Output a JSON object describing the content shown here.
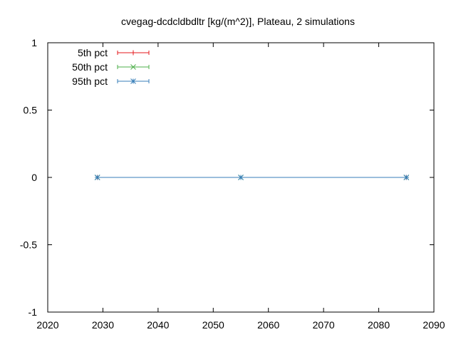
{
  "chart_data": {
    "type": "line",
    "title": "cvegag-dcdcldbdltr [kg/(m^2)], Plateau, 2 simulations",
    "xlabel": "",
    "ylabel": "",
    "xlim": [
      2020,
      2090
    ],
    "ylim": [
      -1,
      1
    ],
    "x_ticks": [
      "2020",
      "2030",
      "2040",
      "2050",
      "2060",
      "2070",
      "2080",
      "2090"
    ],
    "y_ticks": [
      "1",
      "0.5",
      "0",
      "-0.5",
      "-1"
    ],
    "legend_position": "top-left",
    "grid": false,
    "series": [
      {
        "name": "5th pct",
        "color": "#e41a1c",
        "marker": "plus",
        "x": [
          2029,
          2055,
          2085
        ],
        "y": [
          0,
          0,
          0
        ]
      },
      {
        "name": "50th pct",
        "color": "#4daf4a",
        "marker": "cross",
        "x": [
          2029,
          2055,
          2085
        ],
        "y": [
          0,
          0,
          0
        ]
      },
      {
        "name": "95th pct",
        "color": "#377eb8",
        "marker": "asterisk",
        "x": [
          2029,
          2055,
          2085
        ],
        "y": [
          0,
          0,
          0
        ]
      }
    ]
  }
}
